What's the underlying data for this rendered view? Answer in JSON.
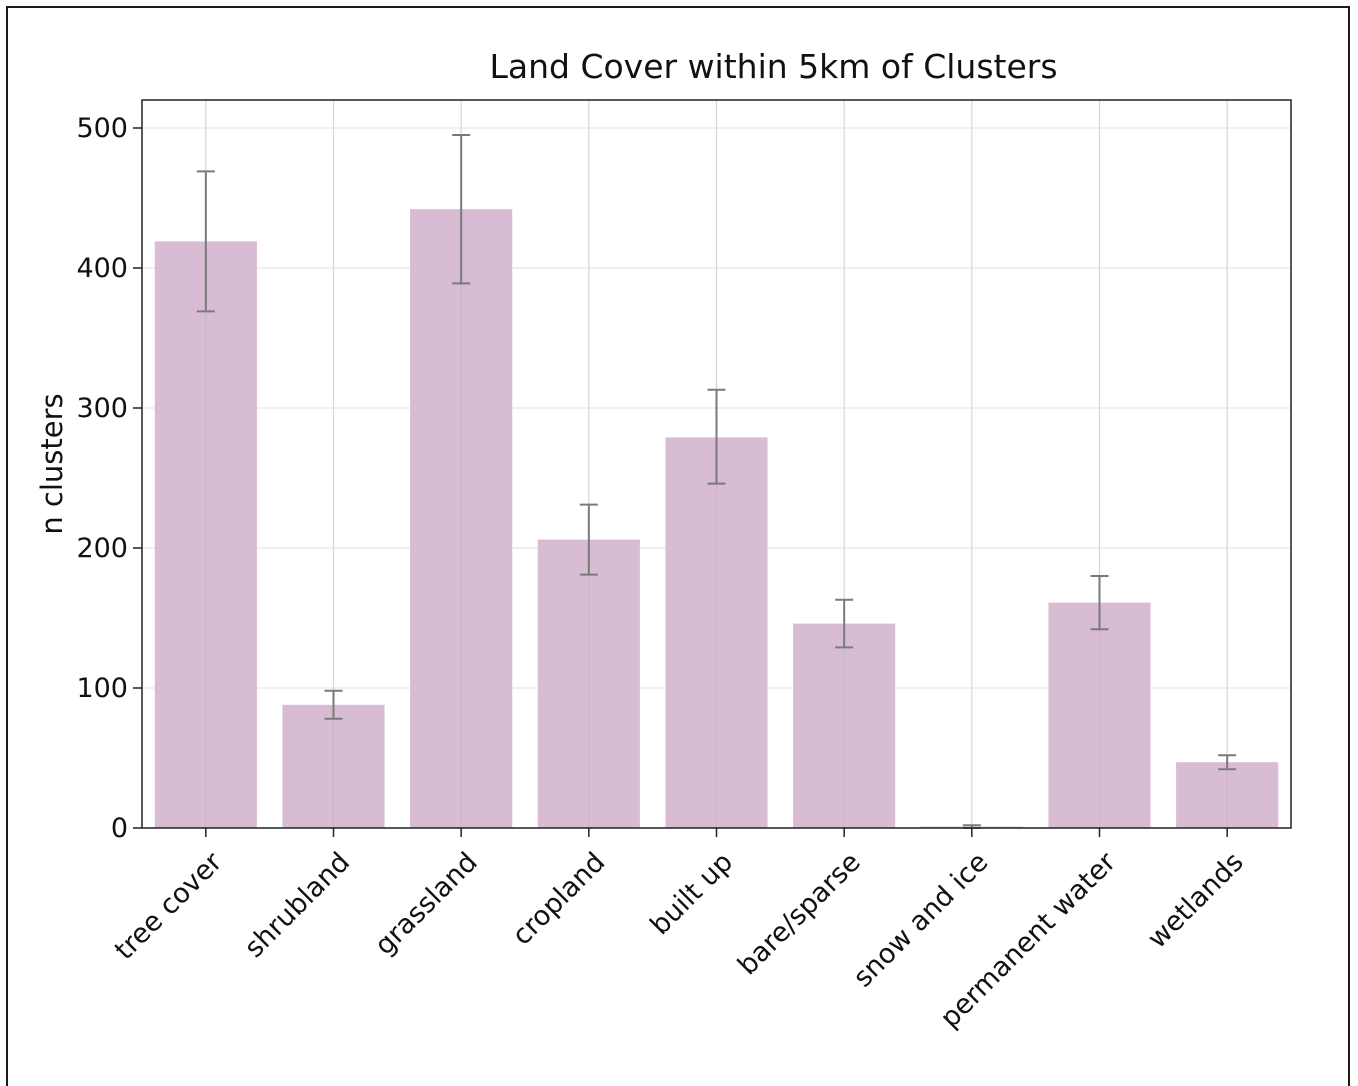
{
  "chart_data": {
    "type": "bar",
    "title": "Land Cover within 5km of Clusters",
    "xlabel": "",
    "ylabel": "n clusters",
    "categories": [
      "tree cover",
      "shrubland",
      "grassland",
      "cropland",
      "built up",
      "bare/sparse",
      "snow and ice",
      "permanent water",
      "wetlands"
    ],
    "values": [
      419,
      88,
      442,
      206,
      279,
      146,
      1,
      161,
      47
    ],
    "error_low": [
      369,
      78,
      389,
      181,
      246,
      129,
      0,
      142,
      42
    ],
    "error_high": [
      469,
      98,
      495,
      231,
      313,
      163,
      2,
      180,
      52
    ],
    "ylim": [
      0,
      520
    ],
    "yticks": [
      "0",
      "100",
      "200",
      "300",
      "400",
      "500"
    ],
    "grid": true,
    "bar_color": "#d7bcd3",
    "error_color": "#7a7a7a"
  }
}
